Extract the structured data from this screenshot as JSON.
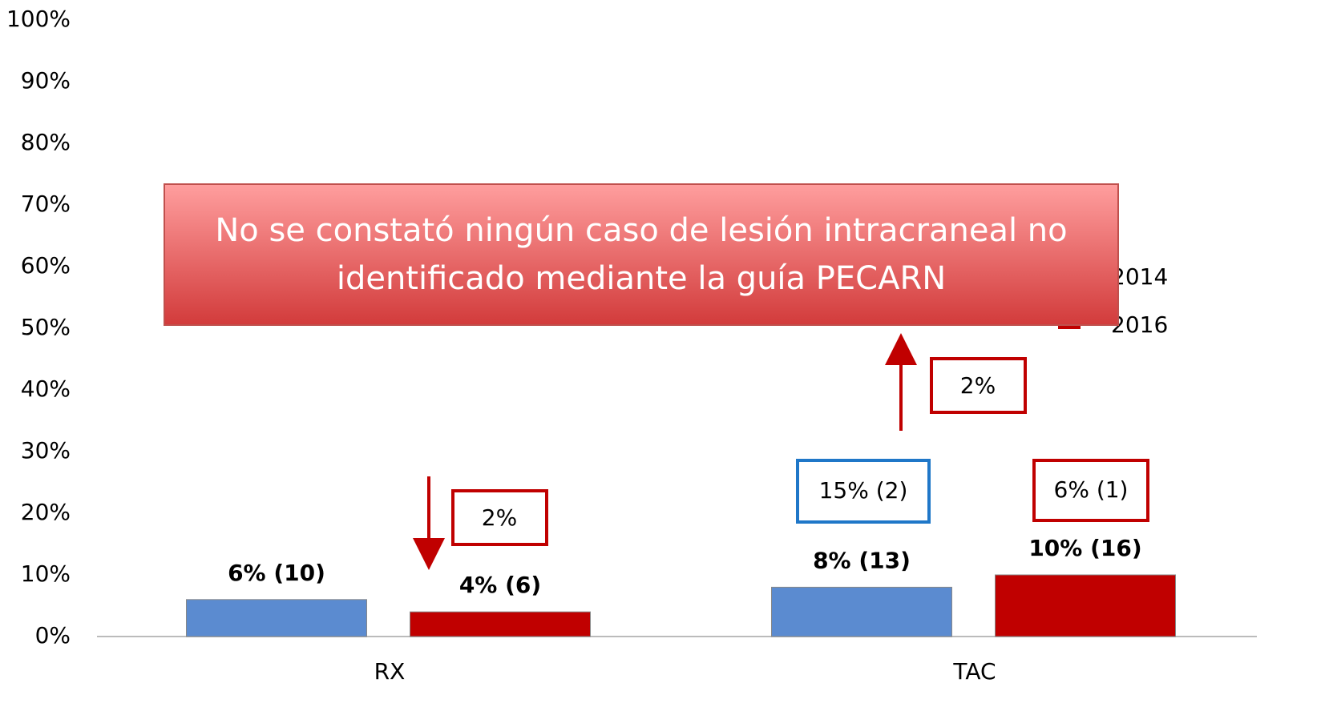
{
  "chart_data": {
    "type": "bar",
    "categories": [
      "RX",
      "TAC"
    ],
    "series": [
      {
        "name": "2014",
        "color": "#5b8bd0",
        "values": [
          6,
          8
        ],
        "value_labels": [
          "6% (10)",
          "8% (13)"
        ]
      },
      {
        "name": "2016",
        "color": "#c00000",
        "values": [
          4,
          10
        ],
        "value_labels": [
          "4% (6)",
          "10% (16)"
        ]
      }
    ],
    "ylim": [
      0,
      100
    ],
    "yticks": [
      {
        "value": 0,
        "label": "0%"
      },
      {
        "value": 10,
        "label": "10%"
      },
      {
        "value": 20,
        "label": "20%"
      },
      {
        "value": 30,
        "label": "30%"
      },
      {
        "value": 40,
        "label": "40%"
      },
      {
        "value": 50,
        "label": "50%"
      },
      {
        "value": 60,
        "label": "60%"
      },
      {
        "value": 70,
        "label": "70%"
      },
      {
        "value": 80,
        "label": "80%"
      },
      {
        "value": 90,
        "label": "90%"
      },
      {
        "value": 100,
        "label": "100%"
      }
    ],
    "grid": false,
    "legend": "right",
    "banner": [
      "No se constató ningún caso de lesión intracraneal no",
      "identificado mediante la guía PECARN"
    ],
    "annotations": [
      "2%",
      "2%",
      "15% (2)",
      "6% (1)"
    ]
  }
}
